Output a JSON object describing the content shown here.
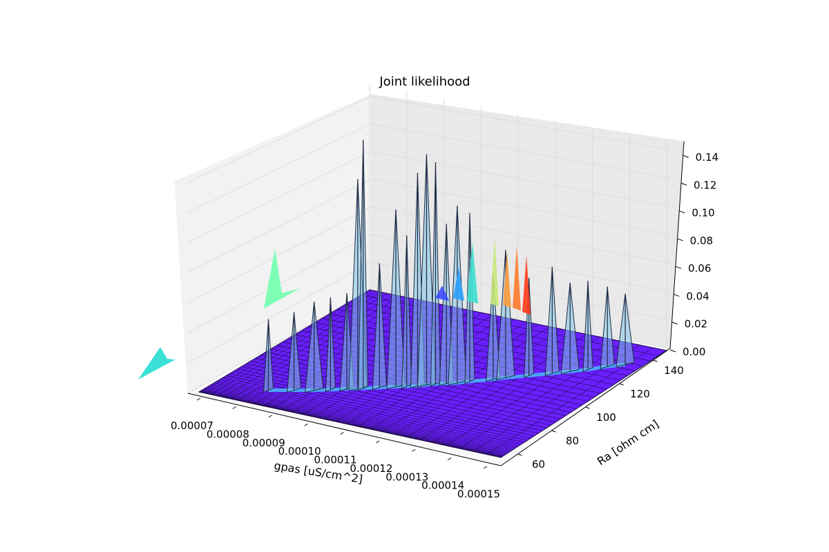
{
  "chart_data": {
    "type": "surface3d",
    "title": "Joint likelihood",
    "xlabel": "gpas [uS/cm^2]",
    "ylabel": "Ra [ohm cm]",
    "zlabel": "",
    "xlim": [
      7e-05,
      0.00015
    ],
    "ylim": [
      50,
      150
    ],
    "zlim": [
      0.0,
      0.15
    ],
    "x_ticks": [
      "0.00007",
      "0.00008",
      "0.00009",
      "0.00010",
      "0.00011",
      "0.00012",
      "0.00013",
      "0.00014",
      "0.00015"
    ],
    "y_ticks": [
      "60",
      "80",
      "100",
      "120",
      "140"
    ],
    "z_ticks": [
      "0.00",
      "0.02",
      "0.04",
      "0.06",
      "0.08",
      "0.10",
      "0.12",
      "0.14"
    ],
    "colormap": "rainbow",
    "surface_base_color": "#6a1fff",
    "grid": true,
    "peaks": [
      {
        "gpas": 8.3e-05,
        "Ra": 62,
        "likelihood": 0.04
      },
      {
        "gpas": 8.8e-05,
        "Ra": 66,
        "likelihood": 0.044
      },
      {
        "gpas": 9.2e-05,
        "Ra": 69,
        "likelihood": 0.05
      },
      {
        "gpas": 9.5e-05,
        "Ra": 72,
        "likelihood": 0.052
      },
      {
        "gpas": 9.8e-05,
        "Ra": 75,
        "likelihood": 0.054
      },
      {
        "gpas": 0.0001,
        "Ra": 77,
        "likelihood": 0.118
      },
      {
        "gpas": 0.000101,
        "Ra": 78,
        "likelihood": 0.14
      },
      {
        "gpas": 0.000104,
        "Ra": 81,
        "likelihood": 0.07
      },
      {
        "gpas": 0.000107,
        "Ra": 84,
        "likelihood": 0.1
      },
      {
        "gpas": 0.000109,
        "Ra": 86,
        "likelihood": 0.085
      },
      {
        "gpas": 0.000111,
        "Ra": 88,
        "likelihood": 0.12
      },
      {
        "gpas": 0.0001125,
        "Ra": 90,
        "likelihood": 0.13
      },
      {
        "gpas": 0.000114,
        "Ra": 92,
        "likelihood": 0.125
      },
      {
        "gpas": 0.000116,
        "Ra": 94,
        "likelihood": 0.09
      },
      {
        "gpas": 0.000118,
        "Ra": 96,
        "likelihood": 0.1
      },
      {
        "gpas": 0.00012,
        "Ra": 99,
        "likelihood": 0.095
      },
      {
        "gpas": 0.000124,
        "Ra": 104,
        "likelihood": 0.06
      },
      {
        "gpas": 0.000126,
        "Ra": 107,
        "likelihood": 0.072
      },
      {
        "gpas": 0.00013,
        "Ra": 112,
        "likelihood": 0.055
      },
      {
        "gpas": 0.000134,
        "Ra": 117,
        "likelihood": 0.06
      },
      {
        "gpas": 0.000137,
        "Ra": 121,
        "likelihood": 0.05
      },
      {
        "gpas": 0.00014,
        "Ra": 125,
        "likelihood": 0.05
      },
      {
        "gpas": 0.000143,
        "Ra": 130,
        "likelihood": 0.045
      },
      {
        "gpas": 0.000146,
        "Ra": 134,
        "likelihood": 0.04
      }
    ]
  }
}
